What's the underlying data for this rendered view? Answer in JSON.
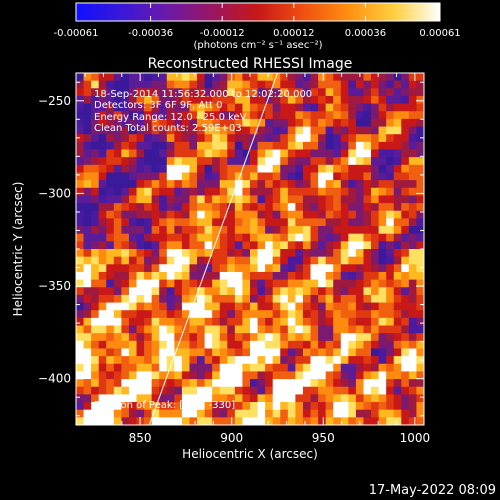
{
  "colorbar": {
    "tick_labels": [
      "-0.00061",
      "-0.00036",
      "-0.00012",
      "0.00012",
      "0.00036",
      "0.00061"
    ],
    "units_label": "(photons cm⁻² s⁻¹ asec⁻²)",
    "range": [
      -0.00061,
      0.00061
    ],
    "stops": [
      "#1010ff",
      "#3a18d8",
      "#6a1aa8",
      "#9a1660",
      "#c81818",
      "#f05010",
      "#ff9010",
      "#ffd040",
      "#ffffff"
    ]
  },
  "chart_data": {
    "type": "heatmap",
    "title": "Reconstructed RHESSI Image",
    "xlabel": "Heliocentric X (arcsec)",
    "ylabel": "Heliocentric Y (arcsec)",
    "xlim": [
      815,
      1005
    ],
    "ylim": [
      -425,
      -235
    ],
    "x_ticks": [
      850,
      900,
      950,
      1000
    ],
    "y_ticks": [
      -250,
      -300,
      -350,
      -400
    ],
    "annotations": [
      "18-Sep-2014 11:56:32.000 to 12:02:20.000",
      "Detectors: 3F 6F 9F, Att 0",
      "Energy Range: 12.0 - 25.0 keV",
      "Clean    Total counts: 2.59E+03"
    ],
    "position_label": "Position of Peak:  [818, -330]",
    "limb_line": {
      "x": [
        855,
        925
      ],
      "y": [
        -425,
        -235
      ]
    }
  },
  "footer_timestamp": "17-May-2022 08:09"
}
